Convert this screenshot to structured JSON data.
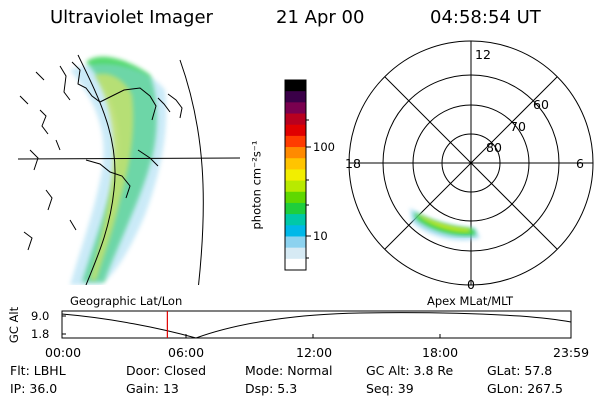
{
  "header": {
    "instrument": "Ultraviolet Imager",
    "date": "21 Apr 00",
    "time": "04:58:54 UT"
  },
  "colorbar": {
    "unit_label": "photon cm⁻²s⁻¹",
    "ticks": [
      "100",
      "10"
    ],
    "colors": [
      "#000000",
      "#3a0048",
      "#7a004f",
      "#b8001f",
      "#e00000",
      "#ff3c00",
      "#ff8a00",
      "#ffc400",
      "#f2ee00",
      "#b8ea00",
      "#5fd800",
      "#1fce3c",
      "#00c8a8",
      "#00b8e8",
      "#8cd2ef",
      "#d6eaf4",
      "#ffffff"
    ]
  },
  "geo_panel": {
    "label": "Geographic Lat/Lon"
  },
  "polar_panel": {
    "label": "Apex MLat/MLT",
    "mlt_labels": {
      "top": "12",
      "left": "18",
      "right": "6",
      "bottom": "0"
    },
    "lat_labels": [
      "60",
      "70",
      "80"
    ]
  },
  "altitude_plot": {
    "ylabel": "GC Alt",
    "yticks": [
      "9.0",
      "1.8"
    ],
    "xticks": [
      "00:00",
      "06:00",
      "12:00",
      "18:00",
      "23:59"
    ],
    "current_time_fraction": 0.207
  },
  "status": {
    "row1": [
      {
        "key": "Flt:",
        "value": "LBHL"
      },
      {
        "key": "Door:",
        "value": "Closed"
      },
      {
        "key": "Mode:",
        "value": "Normal"
      },
      {
        "key": "GC Alt:",
        "value": "3.8 Re"
      },
      {
        "key": "GLat:",
        "value": "57.8"
      }
    ],
    "row2": [
      {
        "key": "IP:",
        "value": "36.0"
      },
      {
        "key": "Gain:",
        "value": "13"
      },
      {
        "key": "Dsp:",
        "value": "5.3"
      },
      {
        "key": "Seq:",
        "value": "39"
      },
      {
        "key": "GLon:",
        "value": "267.5"
      }
    ]
  }
}
